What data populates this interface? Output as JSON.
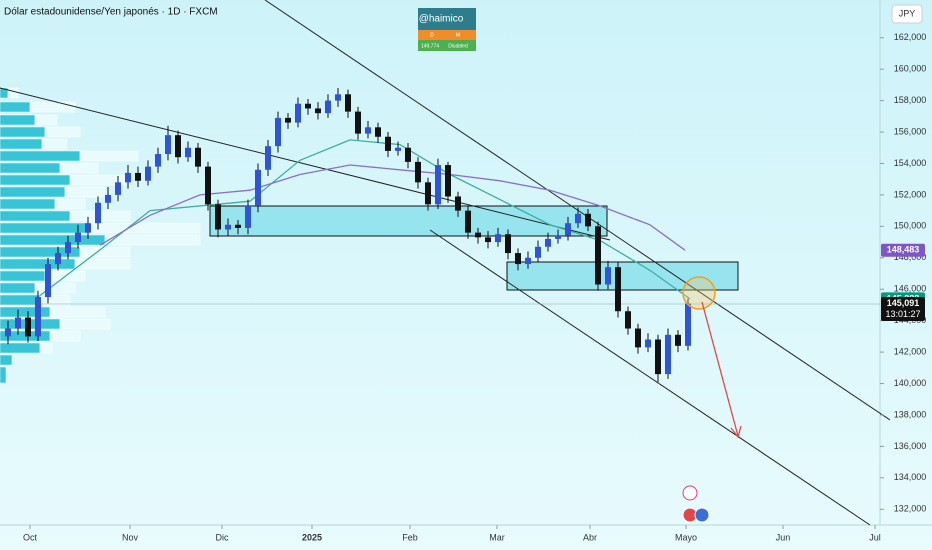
{
  "chart_data": {
    "type": "candlestick",
    "title": "Dólar estadounidense/Yen japonés · 1D · FXCM",
    "currency": "JPY",
    "badge": {
      "name": "@haimico",
      "cells": [
        "D",
        "M",
        "149,774",
        "Disabled"
      ]
    },
    "up_color": "#2f55d4",
    "down_color": "#111111",
    "xlim": [
      -0.8,
      87.2
    ],
    "xticks": [
      {
        "value": 2.2,
        "label": "Oct"
      },
      {
        "value": 12.2,
        "label": "Nov"
      },
      {
        "value": 21.4,
        "label": "Dic"
      },
      {
        "value": 30.4,
        "label": "2025"
      },
      {
        "value": 40.2,
        "label": "Feb"
      },
      {
        "value": 48.9,
        "label": "Mar"
      },
      {
        "value": 58.2,
        "label": "Abr"
      },
      {
        "value": 67.8,
        "label": "Mayo"
      },
      {
        "value": 77.5,
        "label": "Jun"
      },
      {
        "value": 86.7,
        "label": "Jul"
      }
    ],
    "ylim": [
      131000,
      164400
    ],
    "yticks": [
      {
        "value": 132000,
        "label": "132,000"
      },
      {
        "value": 134000,
        "label": "134,000"
      },
      {
        "value": 136000,
        "label": "136,000"
      },
      {
        "value": 138000,
        "label": "138,000"
      },
      {
        "value": 140000,
        "label": "140,000"
      },
      {
        "value": 142000,
        "label": "142,000"
      },
      {
        "value": 144000,
        "label": "144,000"
      },
      {
        "value": 146000,
        "label": "146,000"
      },
      {
        "value": 148000,
        "label": "148,000"
      },
      {
        "value": 150000,
        "label": "150,000"
      },
      {
        "value": 152000,
        "label": "152,000"
      },
      {
        "value": 154000,
        "label": "154,000"
      },
      {
        "value": 156000,
        "label": "156,000"
      },
      {
        "value": 158000,
        "label": "158,000"
      },
      {
        "value": 160000,
        "label": "160,000"
      },
      {
        "value": 162000,
        "label": "162,000"
      }
    ],
    "open": [
      143000,
      143500,
      144200,
      143000,
      145500,
      147600,
      148300,
      149000,
      149600,
      150200,
      151500,
      152000,
      152800,
      153400,
      152900,
      153800,
      154600,
      155800,
      154400,
      155000,
      153800,
      151400,
      149800,
      150100,
      149900,
      151300,
      153600,
      155100,
      156900,
      156600,
      157800,
      157500,
      157200,
      158000,
      158400,
      157300,
      155900,
      156300,
      155700,
      154800,
      155000,
      154100,
      152800,
      151400,
      153900,
      151900,
      151000,
      149600,
      149300,
      149000,
      149500,
      148300,
      147600,
      148000,
      148700,
      149200,
      149400,
      150200,
      150800,
      150000,
      146300,
      147400,
      144600,
      143500,
      142300,
      142800,
      140600,
      143100,
      142400
    ],
    "high": [
      144000,
      144700,
      144600,
      145900,
      148000,
      148700,
      149400,
      150100,
      150600,
      151900,
      152500,
      153200,
      153900,
      153800,
      154200,
      155000,
      156400,
      156100,
      155400,
      155300,
      154100,
      151700,
      150500,
      150400,
      151700,
      154000,
      155500,
      157300,
      157200,
      158200,
      158100,
      157900,
      158400,
      158800,
      158700,
      157600,
      156700,
      156600,
      156000,
      155400,
      155300,
      154400,
      153100,
      154300,
      154100,
      152200,
      151300,
      149900,
      149700,
      149900,
      149800,
      148600,
      148400,
      149100,
      149600,
      149800,
      150600,
      151200,
      151100,
      150300,
      147800,
      147700,
      144900,
      143800,
      143200,
      143100,
      143500,
      143400,
      145400
    ],
    "low": [
      142500,
      143100,
      142600,
      142700,
      145100,
      147200,
      147900,
      148600,
      149200,
      149800,
      151100,
      151600,
      152400,
      152500,
      152600,
      153400,
      154200,
      154000,
      154100,
      153400,
      151000,
      149300,
      149400,
      149500,
      149500,
      150900,
      153200,
      154700,
      156200,
      156300,
      157100,
      156800,
      156900,
      157600,
      156900,
      155500,
      155600,
      155300,
      154400,
      154500,
      153700,
      152400,
      151000,
      151100,
      151500,
      150600,
      149200,
      148900,
      148600,
      148700,
      147900,
      147200,
      147300,
      147700,
      148400,
      148900,
      149100,
      149900,
      149700,
      145900,
      146000,
      144200,
      143100,
      141900,
      142000,
      140100,
      140300,
      142000,
      142100
    ],
    "close": [
      143500,
      144200,
      143000,
      145500,
      147600,
      148300,
      149000,
      149600,
      150200,
      151500,
      152000,
      152800,
      153400,
      152900,
      153800,
      154600,
      155800,
      154400,
      155000,
      153800,
      151400,
      149800,
      150100,
      149900,
      151300,
      153600,
      155100,
      156900,
      156600,
      157800,
      157500,
      157200,
      158000,
      158400,
      157300,
      155900,
      156300,
      155700,
      154800,
      155000,
      154100,
      152800,
      151400,
      153900,
      151900,
      151000,
      149600,
      149300,
      149000,
      149500,
      148300,
      147600,
      148000,
      148700,
      149200,
      149400,
      150200,
      150800,
      150000,
      146300,
      147400,
      144600,
      143500,
      142300,
      142800,
      140600,
      143100,
      142400,
      145091
    ],
    "lines": [
      {
        "color": "#3fae9c",
        "x": [
          3.2,
          9.2,
          14.2,
          24.2,
          29.2,
          34.2,
          39.2,
          44.2,
          49.2,
          54.2,
          59.2,
          64.2,
          68.2
        ],
        "values": [
          145600,
          148500,
          151000,
          151600,
          154200,
          155500,
          155200,
          153300,
          151700,
          150100,
          149100,
          147200,
          145383
        ]
      },
      {
        "color": "#8a6fc8",
        "x": [
          9.2,
          14.2,
          19.2,
          24.2,
          29.2,
          34.2,
          39.2,
          44.2,
          49.2,
          54.2,
          59.2,
          64.2,
          67.7
        ],
        "values": [
          148800,
          150700,
          152000,
          152300,
          153300,
          153900,
          153600,
          153300,
          152900,
          152300,
          151300,
          150100,
          148483
        ]
      }
    ],
    "price_labels": [
      {
        "value": 148483,
        "label": "148,483",
        "color": "#7e57c2"
      },
      {
        "value": 145383,
        "label": "145,383",
        "color": "#089981"
      },
      {
        "value": 145091,
        "label": "145,091",
        "countdown": "13:01:27",
        "color": "#111111"
      }
    ]
  }
}
